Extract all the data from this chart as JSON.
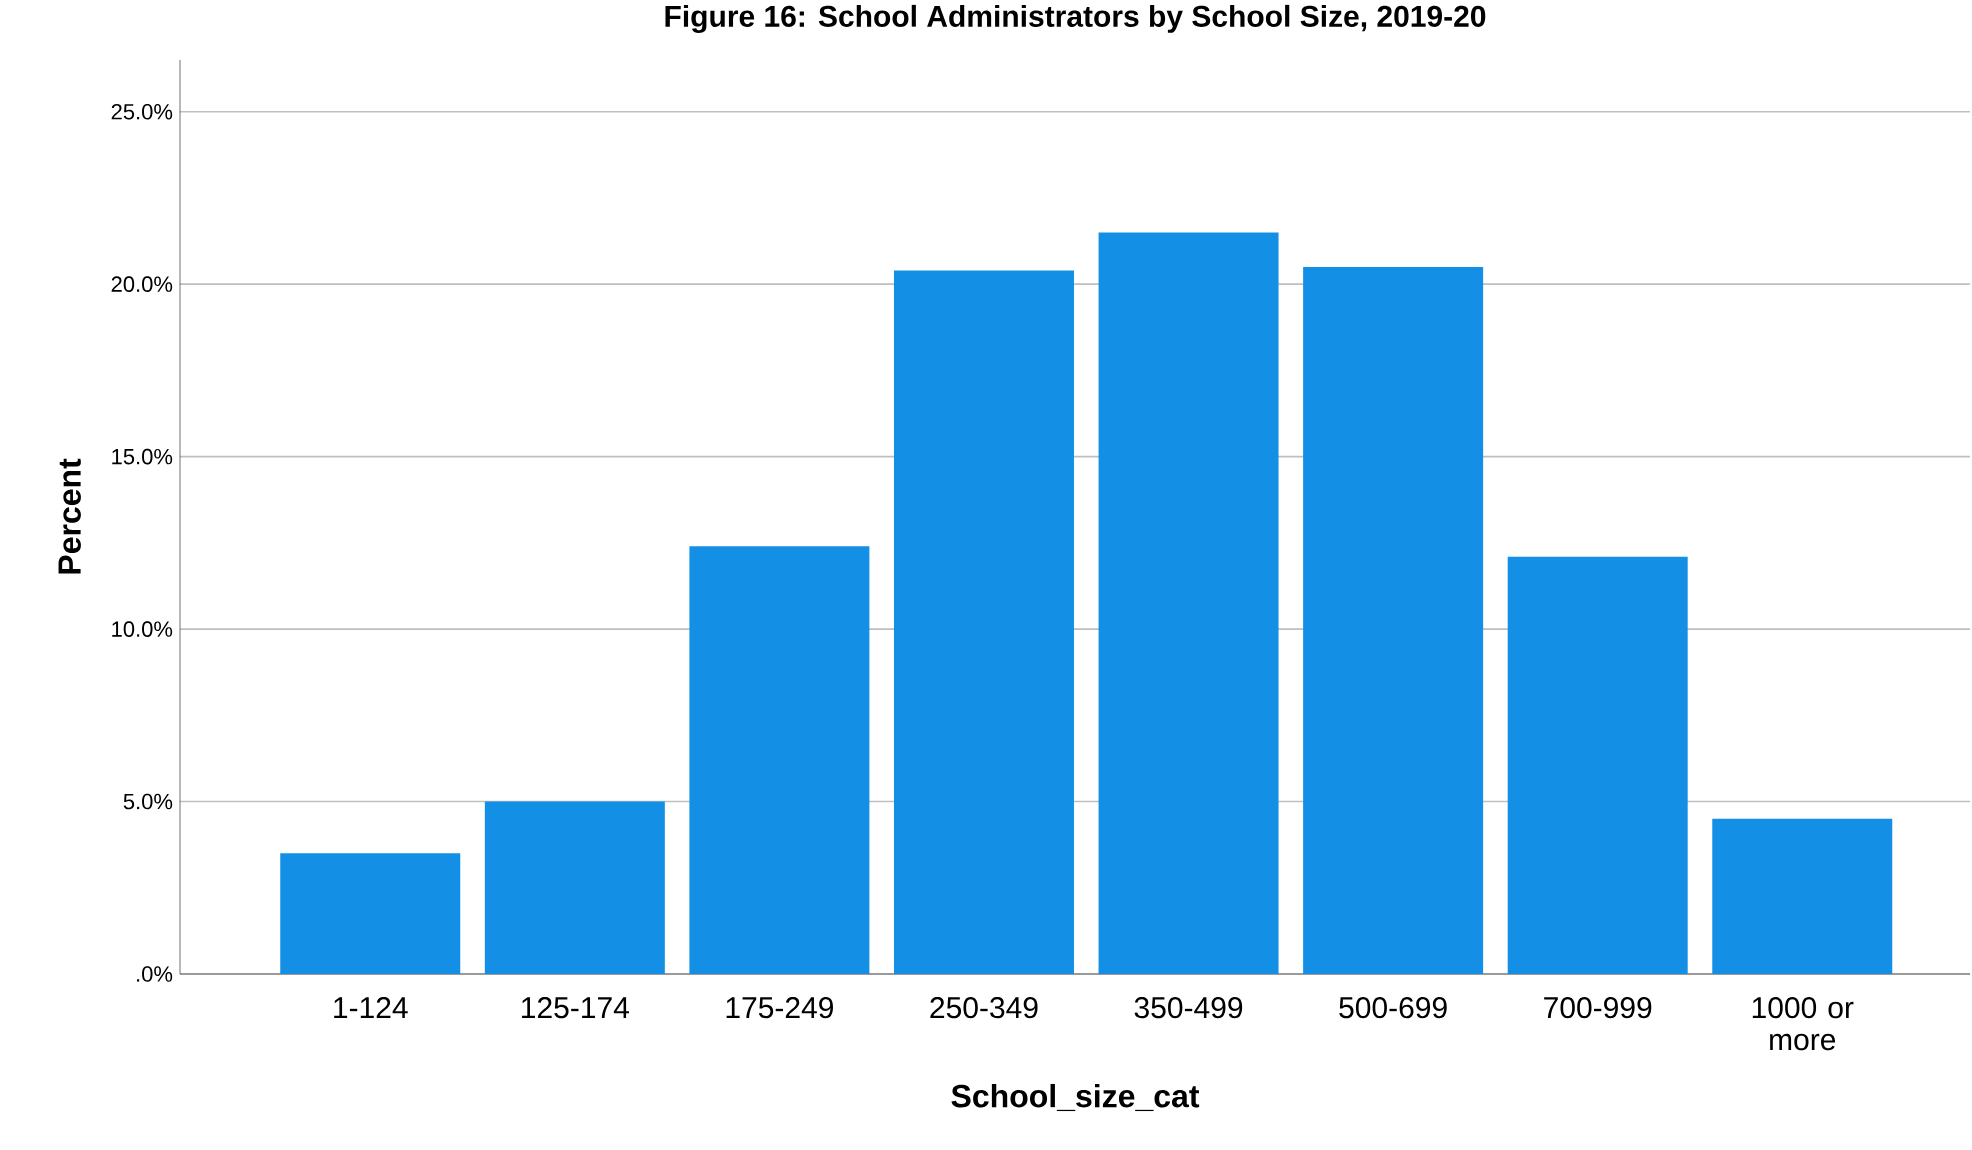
{
  "chart_data": {
    "type": "bar",
    "title": "Figure 16: School Administrators by School Size, 2019-20",
    "xlabel": "School_size_cat",
    "ylabel": "Percent",
    "categories": [
      "1-124",
      "125-174",
      "175-249",
      "250-349",
      "350-499",
      "500-699",
      "700-999",
      "1000 or more"
    ],
    "values": [
      3.5,
      5.0,
      12.4,
      20.4,
      21.5,
      20.5,
      12.1,
      4.5
    ],
    "color": "#1390e6",
    "ylim": [
      0,
      26.5
    ],
    "yticks": [
      {
        "value": 0,
        "label": ".0%"
      },
      {
        "value": 5,
        "label": "5.0%"
      },
      {
        "value": 10,
        "label": "10.0%"
      },
      {
        "value": 15,
        "label": "15.0%"
      },
      {
        "value": 20,
        "label": "20.0%"
      },
      {
        "value": 25,
        "label": "25.0%"
      }
    ],
    "grid": "y"
  }
}
